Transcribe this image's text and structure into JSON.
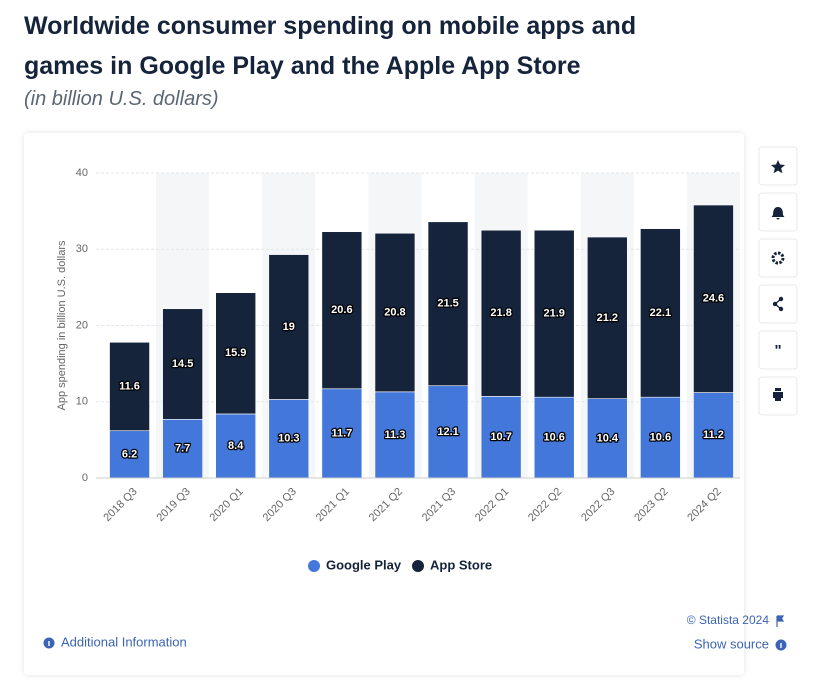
{
  "chart_data": {
    "type": "stacked_bar",
    "title": "Worldwide consumer spending on mobile apps and games in Google Play and the Apple App Store",
    "subtitle": "(in billion U.S. dollars)",
    "y_label": "App spending in billion U.S. dollars",
    "categories": [
      "2018 Q3",
      "2019 Q3",
      "2020 Q1",
      "2020 Q3",
      "2021 Q1",
      "2021 Q2",
      "2021 Q3",
      "2022 Q1",
      "2022 Q2",
      "2022 Q3",
      "2023 Q2",
      "2024 Q2"
    ],
    "series": [
      {
        "name": "Google Play",
        "color": "#4377da",
        "values": [
          6.2,
          7.7,
          8.4,
          10.3,
          11.7,
          11.3,
          12.1,
          10.7,
          10.6,
          10.4,
          10.6,
          11.2
        ]
      },
      {
        "name": "App Store",
        "color": "#15233b",
        "values": [
          11.6,
          14.5,
          15.9,
          19,
          20.6,
          20.8,
          21.5,
          21.8,
          21.9,
          21.2,
          22.1,
          24.6
        ]
      }
    ],
    "ylim": [
      0,
      40
    ],
    "yticks": [
      0,
      10,
      20,
      30,
      40
    ],
    "grid": true,
    "legend": "bottom"
  },
  "footer": {
    "copyright": "© Statista 2024",
    "show_source": "Show source",
    "additional_info": "Additional Information"
  }
}
